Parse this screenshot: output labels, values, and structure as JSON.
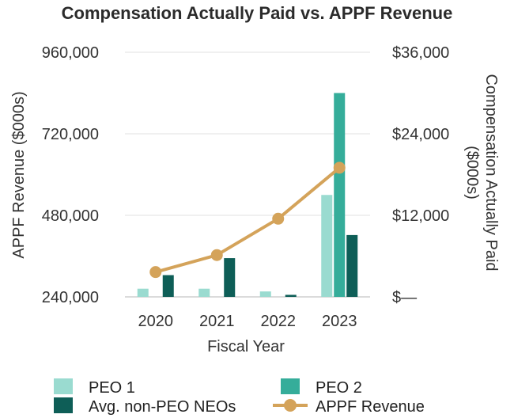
{
  "chart_data": {
    "type": "bar+line",
    "title": "Compensation Actually Paid vs. APPF Revenue",
    "xlabel": "Fiscal Year",
    "ylabel_left": "APPF Revenue ($000s)",
    "ylabel_right_lines": [
      "Compensation Actually Paid",
      "($000s)"
    ],
    "categories": [
      "2020",
      "2021",
      "2022",
      "2023"
    ],
    "left_axis": {
      "range": [
        240000,
        960000
      ],
      "ticks": [
        240000,
        480000,
        720000,
        960000
      ],
      "tick_labels": [
        "240,000",
        "480,000",
        "720,000",
        "960,000"
      ]
    },
    "right_axis": {
      "range": [
        0,
        36000
      ],
      "ticks": [
        0,
        12000,
        24000,
        36000
      ],
      "tick_labels": [
        "$—",
        "$12,000",
        "$24,000",
        "$36,000"
      ]
    },
    "gridlines": true,
    "bar_series": [
      {
        "name": "PEO 1",
        "axis": "right",
        "color": "#9adbd0",
        "values": [
          1200,
          1200,
          800,
          15000
        ]
      },
      {
        "name": "PEO 2",
        "axis": "right",
        "color": "#35ad9a",
        "values": [
          null,
          null,
          null,
          30000
        ]
      },
      {
        "name": "Avg. non-PEO NEOs",
        "axis": "right",
        "color": "#0e5e57",
        "values": [
          3200,
          5700,
          300,
          9100
        ]
      }
    ],
    "line_series": {
      "name": "APPF Revenue",
      "axis": "left",
      "color": "#d4a35a",
      "values": [
        313000,
        363000,
        470000,
        620000
      ]
    },
    "legend": [
      {
        "label": "PEO 1",
        "kind": "box",
        "color": "#9adbd0"
      },
      {
        "label": "PEO 2",
        "kind": "box",
        "color": "#35ad9a"
      },
      {
        "label": "Avg. non-PEO NEOs",
        "kind": "box",
        "color": "#0e5e57"
      },
      {
        "label": "APPF Revenue",
        "kind": "line",
        "color": "#d4a35a"
      }
    ],
    "legend_position": "bottom"
  }
}
